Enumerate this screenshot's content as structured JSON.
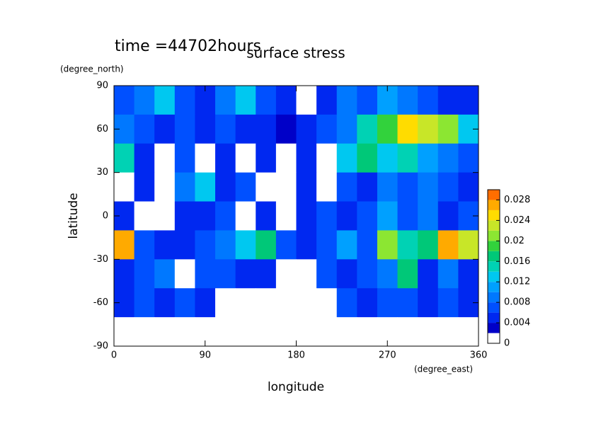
{
  "chart_data": {
    "type": "heatmap",
    "title": "surface stress",
    "subtitle": "time =44702hours",
    "xlabel": "longitude",
    "xunit": "(degree_east)",
    "ylabel": "latitude",
    "yunit": "(degree_north)",
    "xlim": [
      0,
      360
    ],
    "ylim": [
      -90,
      90
    ],
    "xticks": [
      0,
      90,
      180,
      270,
      360
    ],
    "yticks": [
      -90,
      -60,
      -30,
      0,
      30,
      60,
      90
    ],
    "x": [
      10,
      30,
      50,
      70,
      90,
      110,
      130,
      150,
      170,
      190,
      210,
      230,
      250,
      270,
      290,
      310,
      330,
      350
    ],
    "y": [
      80,
      60,
      40,
      20,
      0,
      -20,
      -40,
      -60,
      -80
    ],
    "values": [
      [
        0.006,
        0.008,
        0.012,
        0.006,
        0.004,
        0.008,
        0.012,
        0.006,
        0.004,
        0.001,
        0.004,
        0.008,
        0.006,
        0.01,
        0.008,
        0.006,
        0.004,
        0.004
      ],
      [
        0.008,
        0.006,
        0.004,
        0.006,
        0.004,
        0.006,
        0.004,
        0.004,
        0.002,
        0.004,
        0.006,
        0.008,
        0.014,
        0.018,
        0.024,
        0.022,
        0.02,
        0.012
      ],
      [
        0.014,
        0.004,
        0.001,
        0.006,
        0.001,
        0.004,
        0.001,
        0.004,
        0.001,
        0.004,
        0.001,
        0.012,
        0.016,
        0.012,
        0.014,
        0.01,
        0.008,
        0.006
      ],
      [
        0.001,
        0.004,
        0.001,
        0.008,
        0.012,
        0.004,
        0.006,
        0.001,
        0.001,
        0.004,
        0.001,
        0.006,
        0.004,
        0.008,
        0.006,
        0.008,
        0.006,
        0.004
      ],
      [
        0.004,
        0.001,
        0.001,
        0.004,
        0.004,
        0.006,
        0.001,
        0.004,
        0.001,
        0.004,
        0.006,
        0.004,
        0.006,
        0.01,
        0.006,
        0.008,
        0.004,
        0.006
      ],
      [
        0.026,
        0.006,
        0.004,
        0.004,
        0.006,
        0.008,
        0.012,
        0.016,
        0.006,
        0.004,
        0.006,
        0.01,
        0.006,
        0.02,
        0.014,
        0.016,
        0.026,
        0.022
      ],
      [
        0.004,
        0.006,
        0.008,
        0.001,
        0.006,
        0.006,
        0.004,
        0.004,
        0.001,
        0.001,
        0.006,
        0.004,
        0.006,
        0.008,
        0.016,
        0.004,
        0.008,
        0.004
      ],
      [
        0.004,
        0.006,
        0.004,
        0.006,
        0.004,
        0.001,
        0.001,
        0.001,
        0.001,
        0.001,
        0.001,
        0.006,
        0.004,
        0.006,
        0.006,
        0.004,
        0.006,
        0.004
      ],
      [
        0.001,
        0.001,
        0.001,
        0.001,
        0.001,
        0.001,
        0.001,
        0.001,
        0.001,
        0.001,
        0.001,
        0.001,
        0.001,
        0.001,
        0.001,
        0.001,
        0.001,
        0.001
      ]
    ],
    "levels": [
      0,
      0.002,
      0.004,
      0.006,
      0.008,
      0.01,
      0.012,
      0.014,
      0.016,
      0.018,
      0.02,
      0.022,
      0.024,
      0.026,
      0.028,
      0.03
    ],
    "colors": [
      "#ffffff",
      "#0000c8",
      "#0028f0",
      "#0050ff",
      "#0078ff",
      "#00a0ff",
      "#00c8f0",
      "#00d2b4",
      "#00c878",
      "#32d23c",
      "#8ce632",
      "#c8e628",
      "#ffdc00",
      "#ffaa00",
      "#ff6e00"
    ],
    "colorbar_ticks": [
      0,
      0.004,
      0.008,
      0.012,
      0.016,
      0.02,
      0.024,
      0.028
    ]
  }
}
